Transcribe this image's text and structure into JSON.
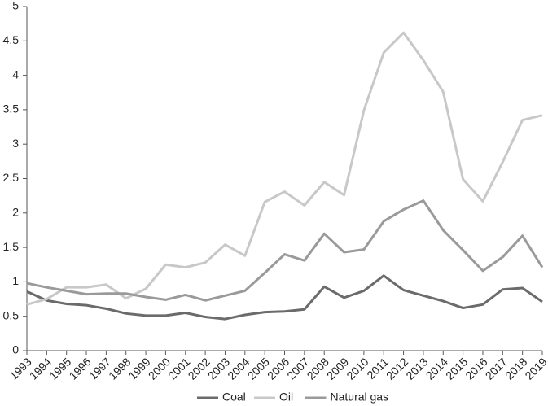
{
  "chart_data": {
    "type": "line",
    "categories": [
      "1993",
      "1994",
      "1995",
      "1996",
      "1997",
      "1998",
      "1999",
      "2000",
      "2001",
      "2002",
      "2003",
      "2004",
      "2005",
      "2006",
      "2007",
      "2008",
      "2009",
      "2010",
      "2011",
      "2012",
      "2013",
      "2014",
      "2015",
      "2016",
      "2017",
      "2018",
      "2019"
    ],
    "series": [
      {
        "name": "Coal",
        "color": "#6b6b6b",
        "values": [
          0.86,
          0.73,
          0.68,
          0.66,
          0.61,
          0.54,
          0.51,
          0.51,
          0.55,
          0.49,
          0.46,
          0.52,
          0.56,
          0.57,
          0.6,
          0.93,
          0.77,
          0.87,
          1.09,
          0.88,
          0.8,
          0.72,
          0.62,
          0.67,
          0.89,
          0.91,
          0.71
        ]
      },
      {
        "name": "Oil",
        "color": "#c8c8c8",
        "values": [
          0.67,
          0.75,
          0.92,
          0.92,
          0.96,
          0.76,
          0.9,
          1.25,
          1.21,
          1.28,
          1.54,
          1.38,
          2.16,
          2.31,
          2.11,
          2.45,
          2.26,
          3.49,
          4.33,
          4.62,
          4.22,
          3.76,
          2.49,
          2.17,
          2.74,
          3.35,
          3.42
        ]
      },
      {
        "name": "Natural gas",
        "color": "#9a9a9a",
        "values": [
          0.98,
          0.92,
          0.87,
          0.82,
          0.83,
          0.83,
          0.78,
          0.74,
          0.81,
          0.73,
          0.8,
          0.87,
          1.13,
          1.4,
          1.31,
          1.7,
          1.43,
          1.47,
          1.88,
          2.05,
          2.18,
          1.75,
          1.46,
          1.16,
          1.36,
          1.67,
          1.21
        ]
      }
    ],
    "ylim": [
      0,
      5
    ],
    "yticks": [
      0,
      0.5,
      1,
      1.5,
      2,
      2.5,
      3,
      3.5,
      4,
      4.5,
      5
    ],
    "grid": false,
    "legend": "bottom"
  }
}
